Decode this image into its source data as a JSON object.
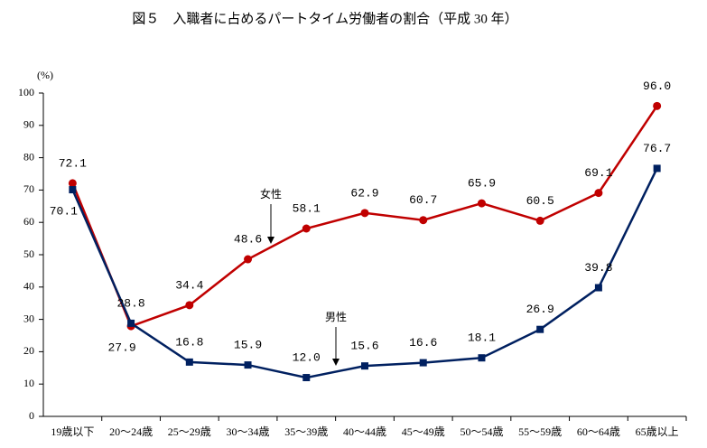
{
  "chart_data": {
    "type": "line",
    "title": "図５　入職者に占めるパートタイム労働者の割合（平成 30 年）",
    "y_unit": "(%)",
    "categories": [
      "19歳以下",
      "20～24歳",
      "25～29歳",
      "30～34歳",
      "35～39歳",
      "40～44歳",
      "45～49歳",
      "50～54歳",
      "55～59歳",
      "60～64歳",
      "65歳以上"
    ],
    "series": [
      {
        "name": "女性",
        "color": "#c00000",
        "marker": "circle",
        "values": [
          72.1,
          27.9,
          34.4,
          48.6,
          58.1,
          62.9,
          60.7,
          65.9,
          60.5,
          69.1,
          96.0
        ],
        "value_labels": [
          "72.1",
          "27.9",
          "34.4",
          "48.6",
          "58.1",
          "62.9",
          "60.7",
          "65.9",
          "60.5",
          "69.1",
          "96.0"
        ]
      },
      {
        "name": "男性",
        "color": "#002060",
        "marker": "square",
        "values": [
          70.1,
          28.8,
          16.8,
          15.9,
          12.0,
          15.6,
          16.6,
          18.1,
          26.9,
          39.8,
          76.7
        ],
        "value_labels": [
          "70.1",
          "28.8",
          "16.8",
          "15.9",
          "12.0",
          "15.6",
          "16.6",
          "18.1",
          "26.9",
          "39.8",
          "76.7"
        ]
      }
    ],
    "ylim": [
      0,
      100
    ],
    "yticks": [
      0,
      10,
      20,
      30,
      40,
      50,
      60,
      70,
      80,
      90,
      100
    ],
    "grid": false
  }
}
